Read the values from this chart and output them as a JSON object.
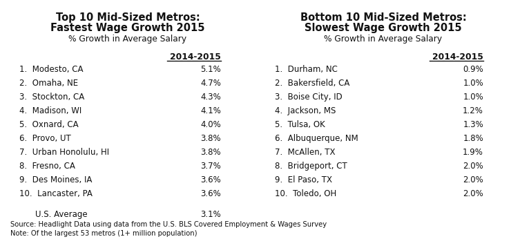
{
  "left_title_line1": "Top 10 Mid-Sized Metros:",
  "left_title_line2": "Fastest Wage Growth 2015",
  "left_subtitle": "% Growth in Average Salary",
  "right_title_line1": "Bottom 10 Mid-Sized Metros:",
  "right_title_line2": "Slowest Wage Growth 2015",
  "right_subtitle": "% Growth in Average Salary",
  "col_header": "2014-2015",
  "left_rows": [
    [
      "1.  Modesto, CA",
      "5.1%"
    ],
    [
      "2.  Omaha, NE",
      "4.7%"
    ],
    [
      "3.  Stockton, CA",
      "4.3%"
    ],
    [
      "4.  Madison, WI",
      "4.1%"
    ],
    [
      "5.  Oxnard, CA",
      "4.0%"
    ],
    [
      "6.  Provo, UT",
      "3.8%"
    ],
    [
      "7.  Urban Honolulu, HI",
      "3.8%"
    ],
    [
      "8.  Fresno, CA",
      "3.7%"
    ],
    [
      "9.  Des Moines, IA",
      "3.6%"
    ],
    [
      "10.  Lancaster, PA",
      "3.6%"
    ]
  ],
  "left_avg_label": "    U.S. Average",
  "left_avg_val": "3.1%",
  "right_rows": [
    [
      "1.  Durham, NC",
      "0.9%"
    ],
    [
      "2.  Bakersfield, CA",
      "1.0%"
    ],
    [
      "3.  Boise City, ID",
      "1.0%"
    ],
    [
      "4.  Jackson, MS",
      "1.2%"
    ],
    [
      "5.  Tulsa, OK",
      "1.3%"
    ],
    [
      "6.  Albuquerque, NM",
      "1.8%"
    ],
    [
      "7.  McAllen, TX",
      "1.9%"
    ],
    [
      "8.  Bridgeport, CT",
      "2.0%"
    ],
    [
      "9.  El Paso, TX",
      "2.0%"
    ],
    [
      "10.  Toledo, OH",
      "2.0%"
    ]
  ],
  "source_line1": "Source: Headlight Data using data from the U.S. BLS Covered Employment & Wages Survey",
  "source_line2": "Note: Of the largest 53 metros (1+ million population)",
  "bg_color": "#ffffff",
  "text_color": "#111111",
  "title_fontsize": 10.5,
  "subtitle_fontsize": 8.8,
  "body_fontsize": 8.5,
  "header_fontsize": 8.8,
  "source_fontsize": 7.2
}
